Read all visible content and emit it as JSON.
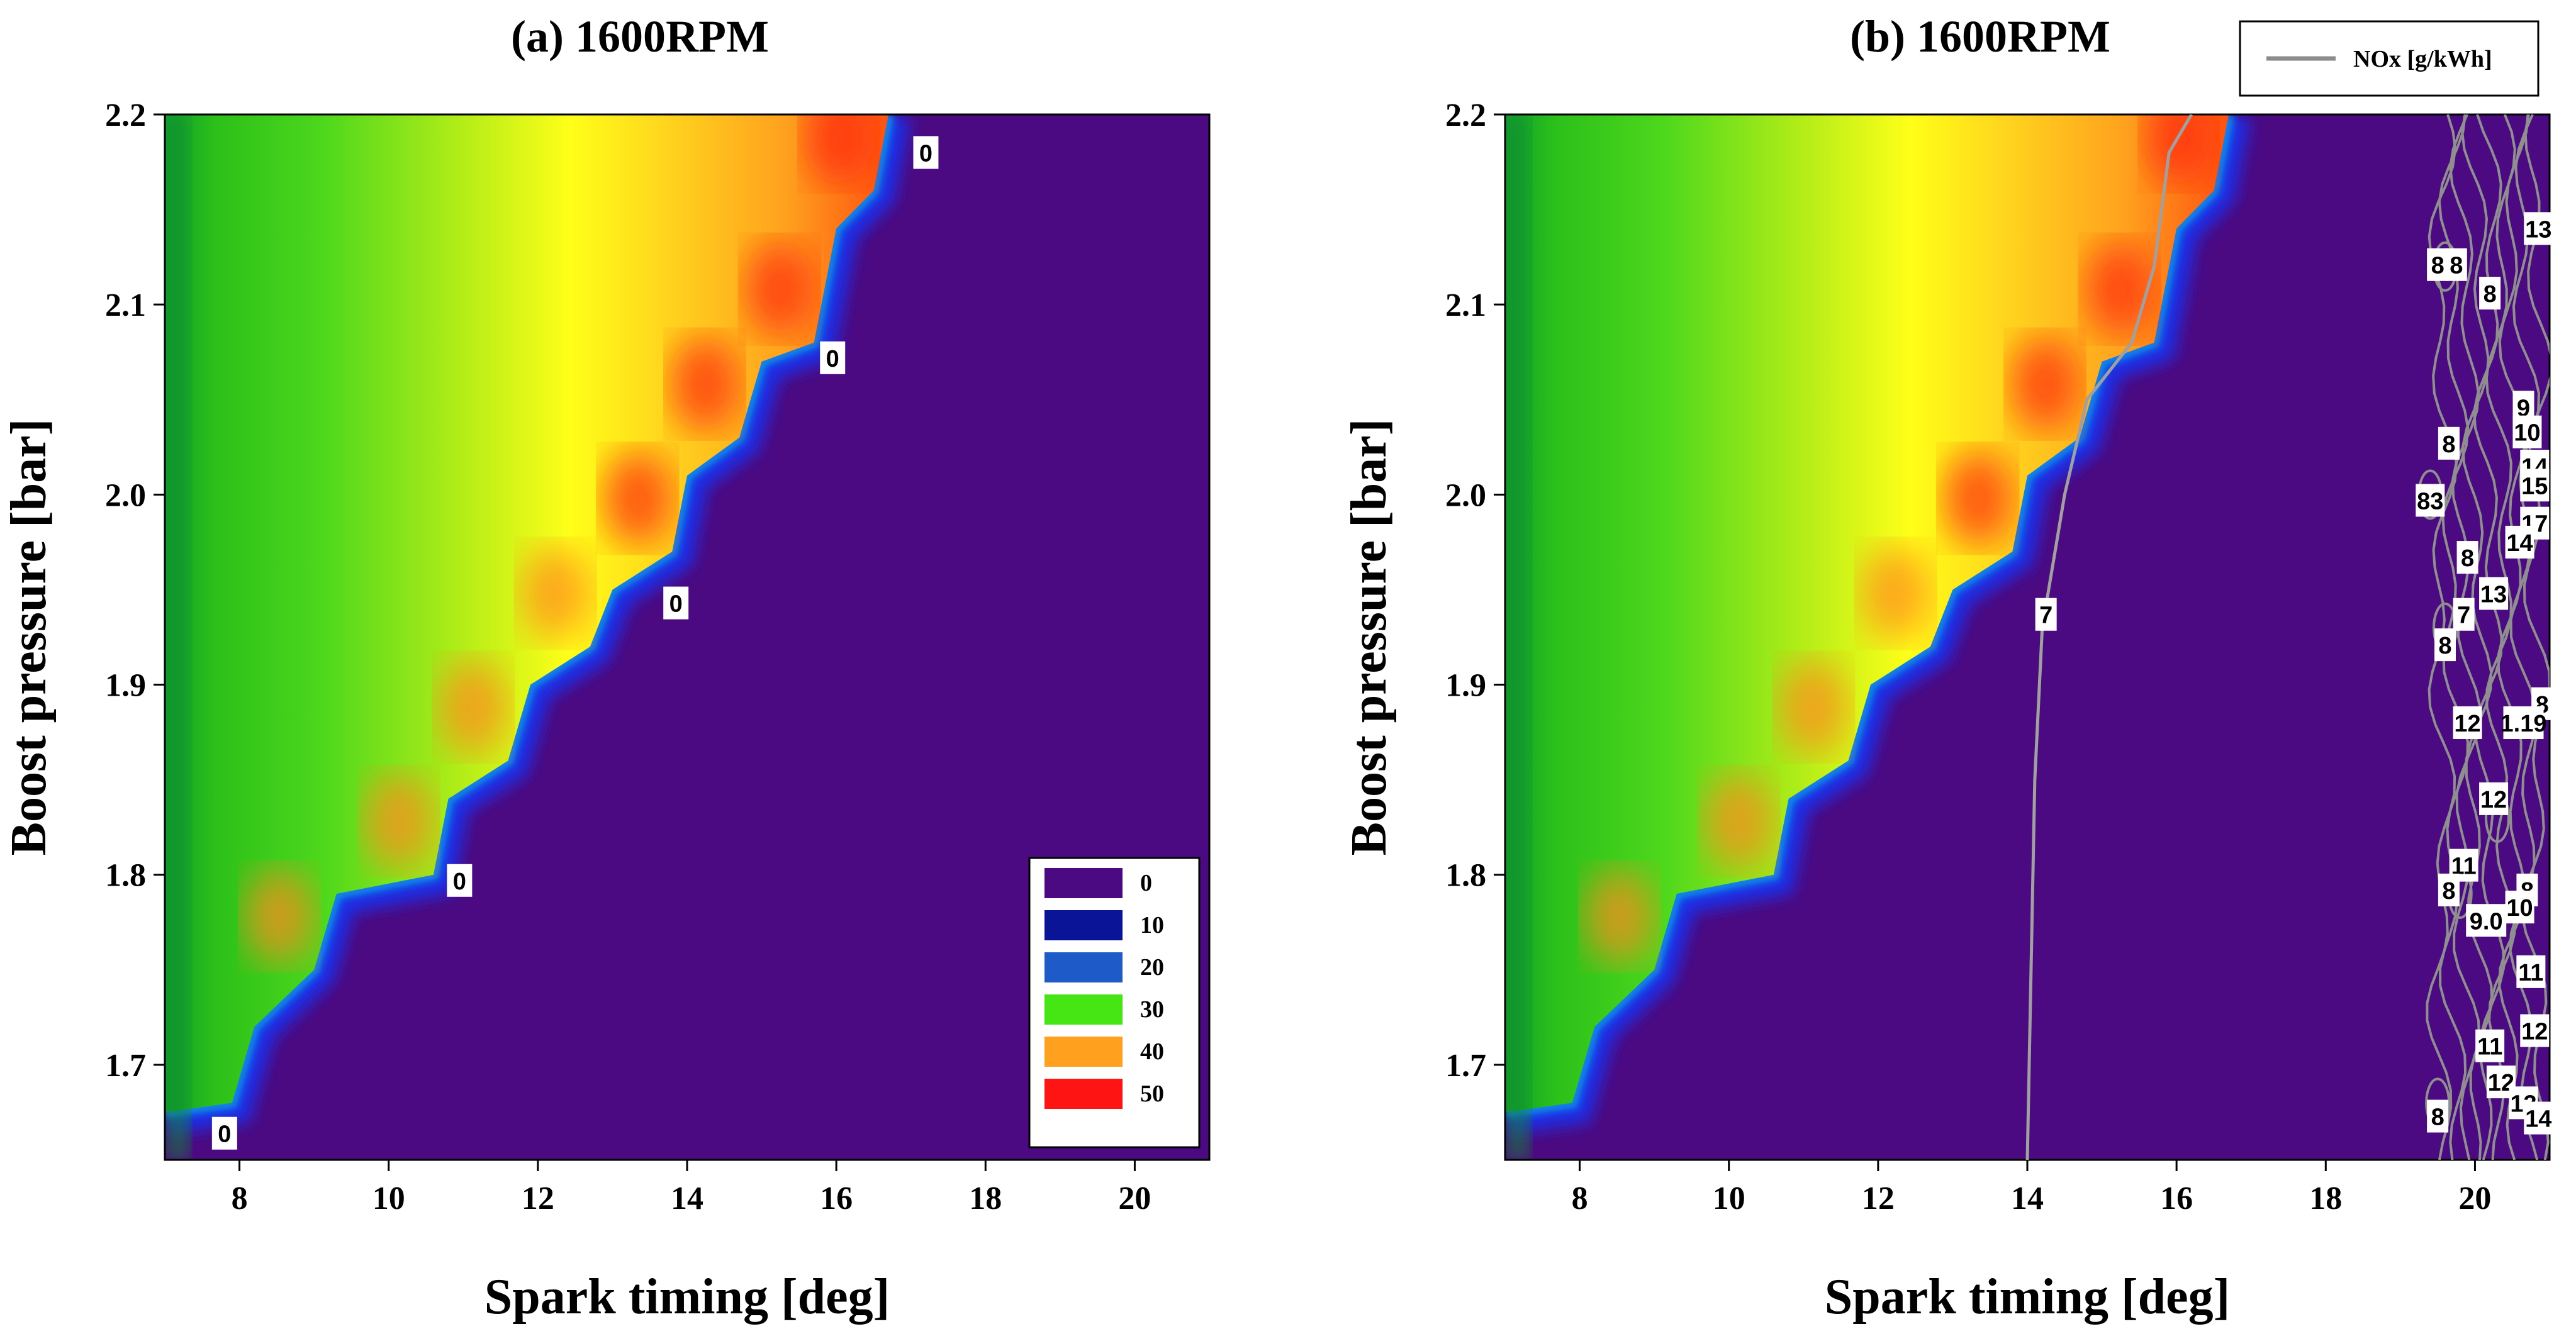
{
  "chart_data": [
    {
      "type": "heatmap",
      "title": "(a) 1600RPM",
      "xlabel": "Spark timing [deg]",
      "ylabel": "Boost pressure [bar]",
      "xlim": [
        7,
        21
      ],
      "ylim": [
        1.65,
        2.2
      ],
      "xticks": [
        "8",
        "10",
        "12",
        "14",
        "16",
        "18",
        "20"
      ],
      "yticks": [
        "1.7",
        "1.8",
        "1.9",
        "2.0",
        "2.1",
        "2.2"
      ],
      "colorbar": {
        "levels": [
          "0",
          "10",
          "20",
          "30",
          "40",
          "50"
        ],
        "colors": [
          "#4b0a82",
          "#0a1496",
          "#1e5ac8",
          "#46e614",
          "#ffa01e",
          "#ff1414"
        ]
      },
      "knock_boundary": [
        {
          "x": 7.0,
          "y": 1.675
        },
        {
          "x": 7.9,
          "y": 1.68
        },
        {
          "x": 8.2,
          "y": 1.72
        },
        {
          "x": 9.0,
          "y": 1.75
        },
        {
          "x": 9.3,
          "y": 1.79
        },
        {
          "x": 10.6,
          "y": 1.8
        },
        {
          "x": 10.8,
          "y": 1.84
        },
        {
          "x": 11.6,
          "y": 1.86
        },
        {
          "x": 11.9,
          "y": 1.9
        },
        {
          "x": 12.7,
          "y": 1.92
        },
        {
          "x": 13.0,
          "y": 1.95
        },
        {
          "x": 13.8,
          "y": 1.97
        },
        {
          "x": 14.0,
          "y": 2.01
        },
        {
          "x": 14.7,
          "y": 2.03
        },
        {
          "x": 15.0,
          "y": 2.07
        },
        {
          "x": 15.7,
          "y": 2.08
        },
        {
          "x": 16.0,
          "y": 2.14
        },
        {
          "x": 16.5,
          "y": 2.16
        },
        {
          "x": 16.7,
          "y": 2.2
        }
      ],
      "contour_labels": [
        {
          "x": 7.8,
          "y": 1.664,
          "text": "0"
        },
        {
          "x": 10.95,
          "y": 1.797,
          "text": "0"
        },
        {
          "x": 13.85,
          "y": 1.943,
          "text": "0"
        },
        {
          "x": 15.95,
          "y": 2.072,
          "text": "0"
        },
        {
          "x": 17.2,
          "y": 2.18,
          "text": "0"
        }
      ]
    },
    {
      "type": "heatmap",
      "title": "(b) 1600RPM",
      "xlabel": "Spark timing [deg]",
      "ylabel": "Boost pressure [bar]",
      "xlim": [
        7,
        21
      ],
      "ylim": [
        1.65,
        2.2
      ],
      "xticks": [
        "8",
        "10",
        "12",
        "14",
        "16",
        "18",
        "20"
      ],
      "yticks": [
        "1.7",
        "1.8",
        "1.9",
        "2.0",
        "2.1",
        "2.2"
      ],
      "legend": {
        "label": "NOx [g/kWh]",
        "color": "#8c8c8c",
        "position": "top-right"
      },
      "nox_line": [
        {
          "x": 14.0,
          "y": 1.65
        },
        {
          "x": 14.05,
          "y": 1.75
        },
        {
          "x": 14.1,
          "y": 1.85
        },
        {
          "x": 14.2,
          "y": 1.93
        },
        {
          "x": 14.5,
          "y": 2.0
        },
        {
          "x": 14.8,
          "y": 2.05
        },
        {
          "x": 15.4,
          "y": 2.08
        },
        {
          "x": 15.7,
          "y": 2.12
        },
        {
          "x": 15.9,
          "y": 2.18
        },
        {
          "x": 16.2,
          "y": 2.2
        }
      ],
      "nox_labels": [
        {
          "x": 14.25,
          "y": 1.937,
          "text": "7"
        },
        {
          "x": 20.85,
          "y": 2.14,
          "text": "13"
        },
        {
          "x": 19.5,
          "y": 2.121,
          "text": "8"
        },
        {
          "x": 19.75,
          "y": 2.121,
          "text": "8"
        },
        {
          "x": 20.2,
          "y": 2.106,
          "text": "8"
        },
        {
          "x": 20.65,
          "y": 2.046,
          "text": "9"
        },
        {
          "x": 20.7,
          "y": 2.033,
          "text": "10"
        },
        {
          "x": 19.65,
          "y": 2.027,
          "text": "8"
        },
        {
          "x": 20.8,
          "y": 2.015,
          "text": "14"
        },
        {
          "x": 20.8,
          "y": 2.005,
          "text": "15"
        },
        {
          "x": 19.4,
          "y": 1.997,
          "text": "83"
        },
        {
          "x": 20.8,
          "y": 1.985,
          "text": "17"
        },
        {
          "x": 20.6,
          "y": 1.975,
          "text": "14"
        },
        {
          "x": 19.9,
          "y": 1.967,
          "text": "8"
        },
        {
          "x": 20.25,
          "y": 1.948,
          "text": "13"
        },
        {
          "x": 19.85,
          "y": 1.937,
          "text": "7"
        },
        {
          "x": 19.6,
          "y": 1.921,
          "text": "8"
        },
        {
          "x": 20.9,
          "y": 1.89,
          "text": "8"
        },
        {
          "x": 19.9,
          "y": 1.88,
          "text": "12"
        },
        {
          "x": 20.65,
          "y": 1.88,
          "text": "1.19"
        },
        {
          "x": 20.25,
          "y": 1.84,
          "text": "12"
        },
        {
          "x": 19.85,
          "y": 1.805,
          "text": "11"
        },
        {
          "x": 19.65,
          "y": 1.792,
          "text": "8"
        },
        {
          "x": 20.7,
          "y": 1.792,
          "text": "8"
        },
        {
          "x": 20.6,
          "y": 1.783,
          "text": "10"
        },
        {
          "x": 20.15,
          "y": 1.776,
          "text": "9.0"
        },
        {
          "x": 20.75,
          "y": 1.749,
          "text": "11"
        },
        {
          "x": 20.8,
          "y": 1.718,
          "text": "12"
        },
        {
          "x": 20.2,
          "y": 1.71,
          "text": "11"
        },
        {
          "x": 20.35,
          "y": 1.691,
          "text": "12"
        },
        {
          "x": 20.65,
          "y": 1.68,
          "text": "13"
        },
        {
          "x": 19.5,
          "y": 1.673,
          "text": "8"
        },
        {
          "x": 20.85,
          "y": 1.672,
          "text": "14"
        }
      ]
    }
  ]
}
